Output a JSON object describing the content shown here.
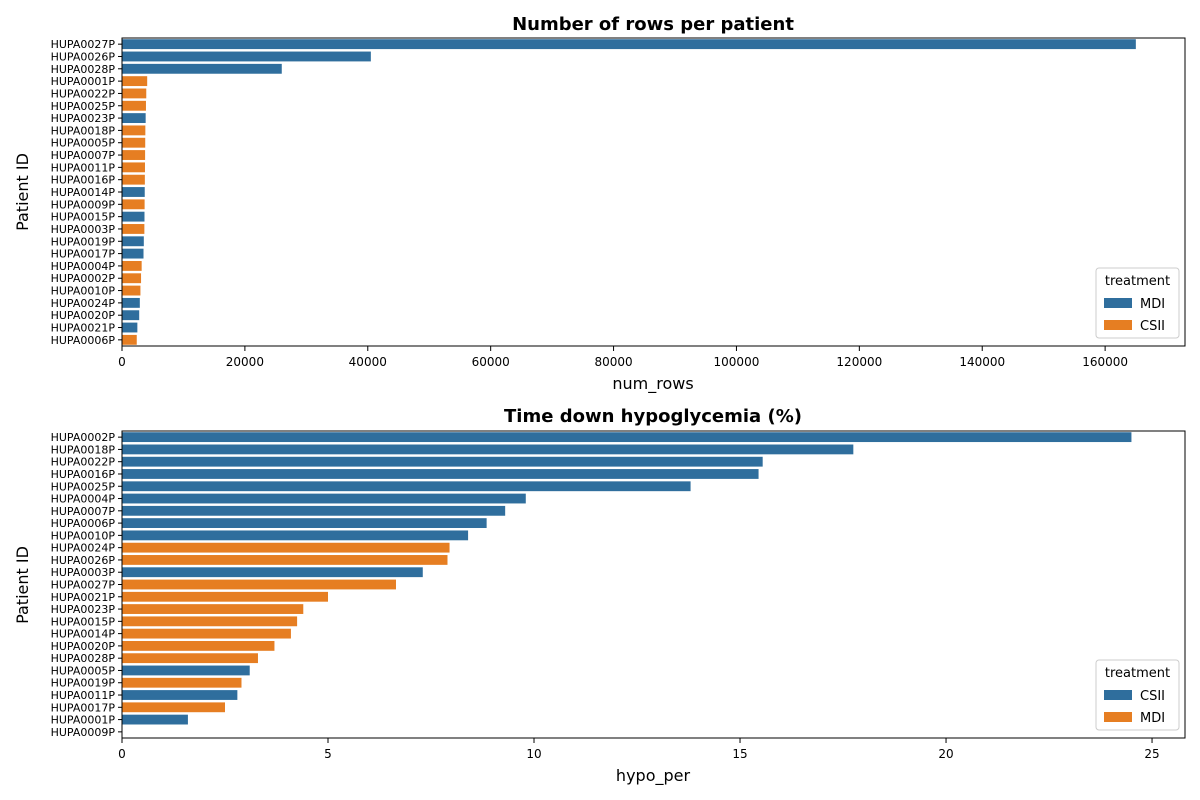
{
  "colors": {
    "blue": "#2f6e9d",
    "orange": "#e67e22"
  },
  "chart_data": [
    {
      "type": "bar",
      "orientation": "horizontal",
      "title": "Number of rows per patient",
      "xlabel": "num_rows",
      "ylabel": "Patient ID",
      "xlim": [
        0,
        173000
      ],
      "xticks": [
        0,
        20000,
        40000,
        60000,
        80000,
        100000,
        120000,
        140000,
        160000
      ],
      "grid": false,
      "legend": {
        "title": "treatment",
        "position": "bottom-right",
        "entries": [
          {
            "label": "MDI",
            "color": "#2f6e9d"
          },
          {
            "label": "CSII",
            "color": "#e67e22"
          }
        ]
      },
      "categories": [
        "HUPA0027P",
        "HUPA0026P",
        "HUPA0028P",
        "HUPA0001P",
        "HUPA0022P",
        "HUPA0025P",
        "HUPA0023P",
        "HUPA0018P",
        "HUPA0005P",
        "HUPA0007P",
        "HUPA0011P",
        "HUPA0016P",
        "HUPA0014P",
        "HUPA0009P",
        "HUPA0015P",
        "HUPA0003P",
        "HUPA0019P",
        "HUPA0017P",
        "HUPA0004P",
        "HUPA0002P",
        "HUPA0010P",
        "HUPA0024P",
        "HUPA0020P",
        "HUPA0021P",
        "HUPA0006P"
      ],
      "values": [
        165000,
        40500,
        26000,
        4100,
        3950,
        3900,
        3850,
        3800,
        3780,
        3760,
        3740,
        3720,
        3700,
        3680,
        3660,
        3640,
        3550,
        3500,
        3200,
        3100,
        3000,
        2900,
        2800,
        2500,
        2400
      ],
      "groups": [
        "MDI",
        "MDI",
        "MDI",
        "CSII",
        "CSII",
        "CSII",
        "MDI",
        "CSII",
        "CSII",
        "CSII",
        "CSII",
        "CSII",
        "MDI",
        "CSII",
        "MDI",
        "CSII",
        "MDI",
        "MDI",
        "CSII",
        "CSII",
        "CSII",
        "MDI",
        "MDI",
        "MDI",
        "CSII"
      ]
    },
    {
      "type": "bar",
      "orientation": "horizontal",
      "title": "Time down hypoglycemia (%)",
      "xlabel": "hypo_per",
      "ylabel": "Patient ID",
      "xlim": [
        0,
        25.8
      ],
      "xticks": [
        0,
        5,
        10,
        15,
        20,
        25
      ],
      "grid": false,
      "legend": {
        "title": "treatment",
        "position": "bottom-right",
        "entries": [
          {
            "label": "CSII",
            "color": "#2f6e9d"
          },
          {
            "label": "MDI",
            "color": "#e67e22"
          }
        ]
      },
      "categories": [
        "HUPA0002P",
        "HUPA0018P",
        "HUPA0022P",
        "HUPA0016P",
        "HUPA0025P",
        "HUPA0004P",
        "HUPA0007P",
        "HUPA0006P",
        "HUPA0010P",
        "HUPA0024P",
        "HUPA0026P",
        "HUPA0003P",
        "HUPA0027P",
        "HUPA0021P",
        "HUPA0023P",
        "HUPA0015P",
        "HUPA0014P",
        "HUPA0020P",
        "HUPA0028P",
        "HUPA0005P",
        "HUPA0019P",
        "HUPA0011P",
        "HUPA0017P",
        "HUPA0001P",
        "HUPA0009P"
      ],
      "values": [
        24.5,
        17.75,
        15.55,
        15.45,
        13.8,
        9.8,
        9.3,
        8.85,
        8.4,
        7.95,
        7.9,
        7.3,
        6.65,
        5.0,
        4.4,
        4.25,
        4.1,
        3.7,
        3.3,
        3.1,
        2.9,
        2.8,
        2.5,
        1.6,
        0
      ],
      "groups": [
        "CSII",
        "CSII",
        "CSII",
        "CSII",
        "CSII",
        "CSII",
        "CSII",
        "CSII",
        "CSII",
        "MDI",
        "MDI",
        "CSII",
        "MDI",
        "MDI",
        "MDI",
        "MDI",
        "MDI",
        "MDI",
        "MDI",
        "CSII",
        "MDI",
        "CSII",
        "MDI",
        "CSII",
        "CSII"
      ]
    }
  ]
}
